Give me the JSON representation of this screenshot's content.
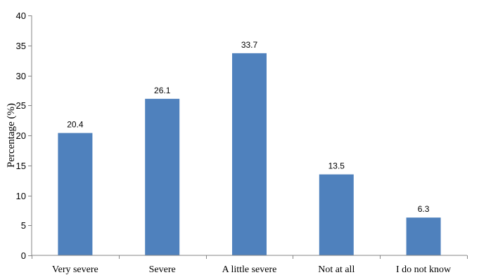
{
  "chart_data": {
    "type": "bar",
    "title": "",
    "xlabel": "",
    "ylabel": "Percentage (%)",
    "categories": [
      "Very severe",
      "Severe",
      "A little severe",
      "Not at all",
      "I do not know"
    ],
    "values": [
      20.4,
      26.1,
      33.7,
      13.5,
      6.3
    ],
    "data_labels": [
      "20.4",
      "26.1",
      "33.7",
      "13.5",
      "6.3"
    ],
    "ylim": [
      0,
      40
    ],
    "yticks": [
      0,
      5,
      10,
      15,
      20,
      25,
      30,
      35,
      40
    ],
    "ytick_labels": [
      "0",
      "5",
      "10",
      "15",
      "20",
      "25",
      "30",
      "35",
      "40"
    ],
    "grid": false,
    "legend": "none",
    "bar_color": "#4f81bd"
  }
}
